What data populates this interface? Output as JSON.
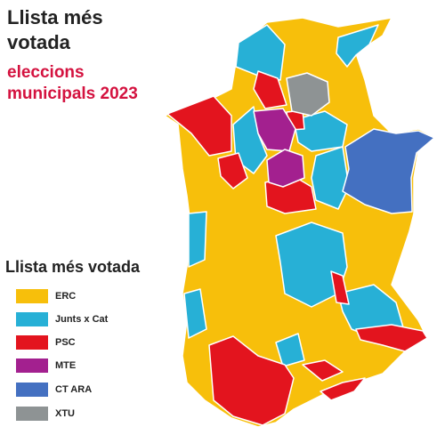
{
  "header": {
    "title": "Llista més votada",
    "subtitle": "eleccions municipals 2023"
  },
  "legend": {
    "title": "Llista més votada",
    "items": [
      {
        "label": "ERC",
        "color": "#f7bf0b"
      },
      {
        "label": "Junts x Cat",
        "color": "#27b0d6"
      },
      {
        "label": "PSC",
        "color": "#e3141e"
      },
      {
        "label": "MTE",
        "color": "#a3208f"
      },
      {
        "label": "CT ARA",
        "color": "#4470c1"
      },
      {
        "label": "XTU",
        "color": "#8e9394"
      }
    ]
  }
}
